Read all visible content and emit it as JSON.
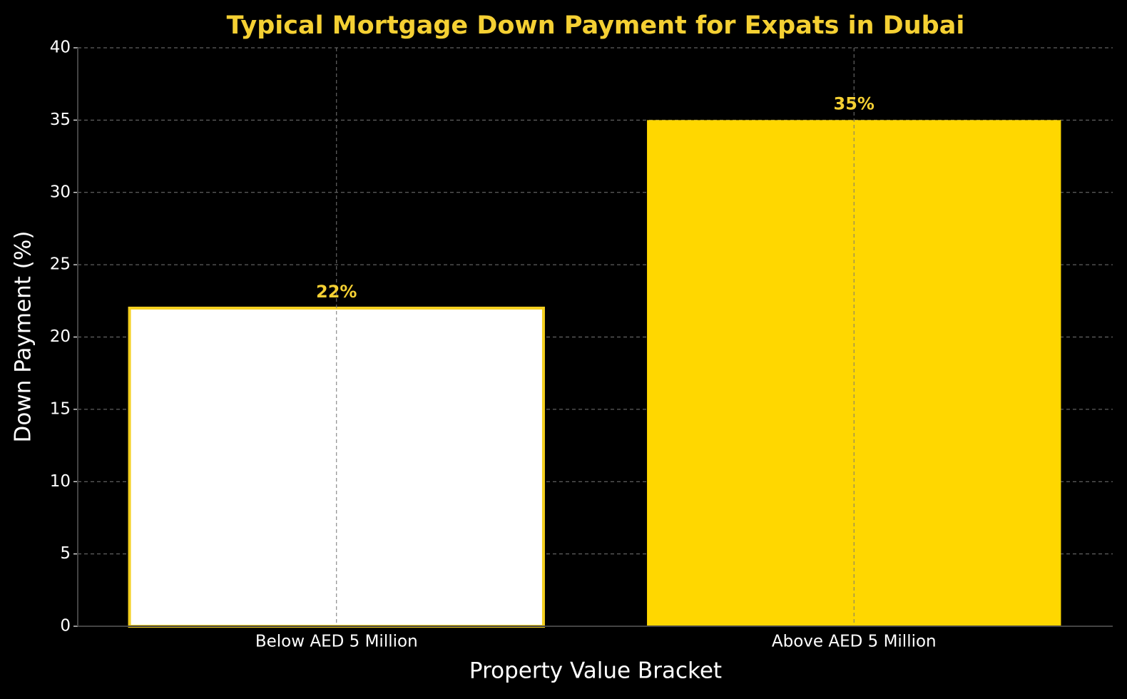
{
  "chart_data": {
    "type": "bar",
    "title": "Typical Mortgage Down Payment for Expats in Dubai",
    "x_label": "Property Value Bracket",
    "y_label": "Down Payment (%)",
    "categories": [
      "Below AED 5 Million",
      "Above AED 5 Million"
    ],
    "values": [
      22,
      35
    ],
    "value_labels": [
      "22%",
      "35%"
    ],
    "colors": [
      "#ffffff",
      "#ffd700"
    ],
    "edgecolor": "#f5d020",
    "ylim": [
      0,
      40
    ],
    "yticks": [
      0,
      5,
      10,
      15,
      20,
      25,
      30,
      35,
      40
    ],
    "grid": true
  }
}
